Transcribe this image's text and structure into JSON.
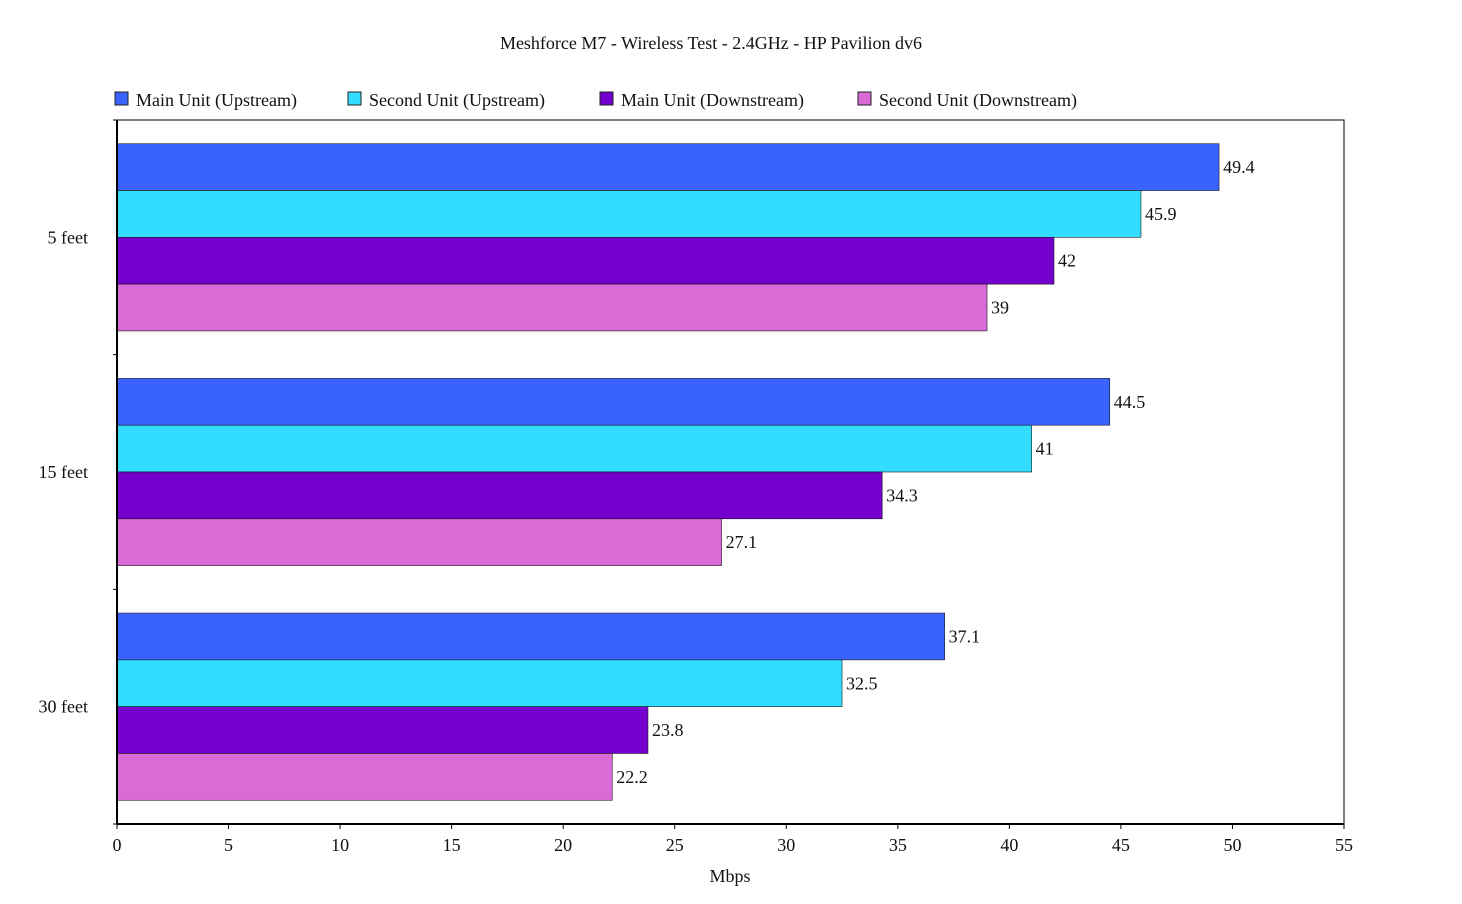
{
  "chart_data": {
    "type": "bar",
    "orientation": "horizontal",
    "title": "Meshforce M7 - Wireless Test - 2.4GHz - HP Pavilion dv6",
    "xlabel": "Mbps",
    "ylabel": "",
    "categories": [
      "5   feet",
      "15 feet",
      "30 feet"
    ],
    "series": [
      {
        "name": "Main Unit (Upstream)",
        "color": "#3a62ff",
        "values": [
          49.4,
          44.5,
          37.1
        ],
        "labels": [
          "49.4",
          "44.5",
          "37.1"
        ]
      },
      {
        "name": "Second Unit (Upstream)",
        "color": "#33ddff",
        "values": [
          45.9,
          41,
          32.5
        ],
        "labels": [
          "45.9",
          "41",
          "32.5"
        ]
      },
      {
        "name": "Main Unit (Downstream)",
        "color": "#7300cc",
        "values": [
          42,
          34.3,
          23.8
        ],
        "labels": [
          "42",
          "34.3",
          "23.8"
        ]
      },
      {
        "name": "Second Unit (Downstream)",
        "color": "#da6ad6",
        "values": [
          39,
          27.1,
          22.2
        ],
        "labels": [
          "39",
          "27.1",
          "22.2"
        ]
      }
    ],
    "xlim": [
      0,
      55
    ],
    "xticks": [
      0,
      5,
      10,
      15,
      20,
      25,
      30,
      35,
      40,
      45,
      50,
      55
    ],
    "grid": false,
    "legend_position": "top"
  }
}
